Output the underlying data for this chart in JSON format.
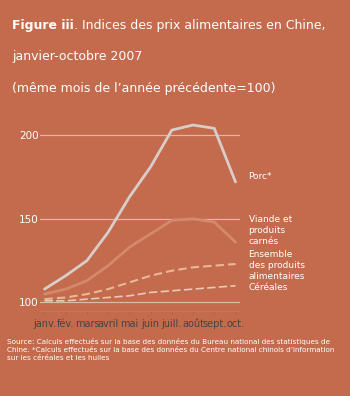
{
  "bg_title": "#d4805f",
  "bg_chart": "#c46b4e",
  "title_line1_bold": "Figure iii",
  "title_line1_rest": ". Indices des prix alimentaires en Chine,",
  "title_line2": "janvier-octobre 2007",
  "title_line3": "(même mois de l’année précédente=100)",
  "x_labels": [
    "janv.",
    "fév.",
    "mars",
    "avril",
    "mai",
    "juin",
    "juill.",
    "août",
    "sept.",
    "oct."
  ],
  "yticks": [
    100,
    150,
    200
  ],
  "ylim_min": 95,
  "ylim_max": 218,
  "porc": [
    108,
    116,
    125,
    142,
    163,
    181,
    203,
    206,
    204,
    172
  ],
  "viande": [
    105,
    108,
    113,
    122,
    133,
    141,
    149,
    150,
    148,
    136
  ],
  "ensemble": [
    102,
    103,
    105,
    108,
    112,
    116,
    119,
    121,
    122,
    123
  ],
  "cereales": [
    101,
    101,
    102,
    103,
    104,
    106,
    107,
    108,
    109,
    110
  ],
  "porc_color": "#d8cdc9",
  "viande_color": "#d4896a",
  "ensemble_color": "#e8b898",
  "cereales_color": "#e8c8b8",
  "hline_color": "#ddc8be",
  "white_box_bg": "#f0ebe8",
  "footer_text": "Source: Calculs effectués sur la base des données du Bureau national des statistiques de\nChine. *Calculs effectués sur la base des données du Centre national chinois d’information\nsur les céréales et les huiles",
  "legend_porc": "Porc*",
  "legend_viande": "Viande et\nproduits\ncarnés",
  "legend_ensemble": "Ensemble\ndes produits\nalimentaires",
  "legend_cereales": "Céréales"
}
